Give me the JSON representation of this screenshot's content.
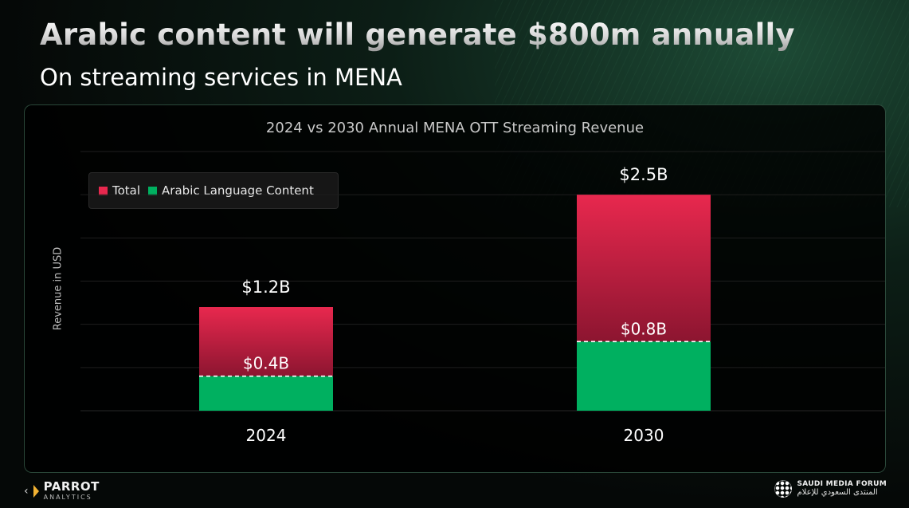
{
  "header": {
    "title": "Arabic content will generate $800m annually",
    "subtitle": "On streaming services in MENA"
  },
  "chart_data": {
    "type": "bar",
    "title": "2024 vs 2030 Annual MENA OTT Streaming Revenue",
    "ylabel": "Revenue in USD",
    "xlabel": "",
    "categories": [
      "2024",
      "2030"
    ],
    "series": [
      {
        "name": "Total",
        "values": [
          1.2,
          2.5
        ],
        "labels": [
          "$1.2B",
          "$2.5B"
        ],
        "color": "#e8284e"
      },
      {
        "name": "Arabic Language Content",
        "values": [
          0.4,
          0.8
        ],
        "labels": [
          "$0.4B",
          "$0.8B"
        ],
        "color": "#00b060"
      }
    ],
    "ylim": [
      0,
      3.0
    ],
    "grid": true,
    "legend_position": "top-left"
  },
  "logos": {
    "left_name": "PARROT",
    "left_sub": "ANALYTICS",
    "right_en": "SAUDI MEDIA FORUM",
    "right_ar": "المنتدى السعودي للإعلام"
  },
  "colors": {
    "total": "#e8284e",
    "total_dark": "#8c1530",
    "arabic": "#00b060"
  }
}
